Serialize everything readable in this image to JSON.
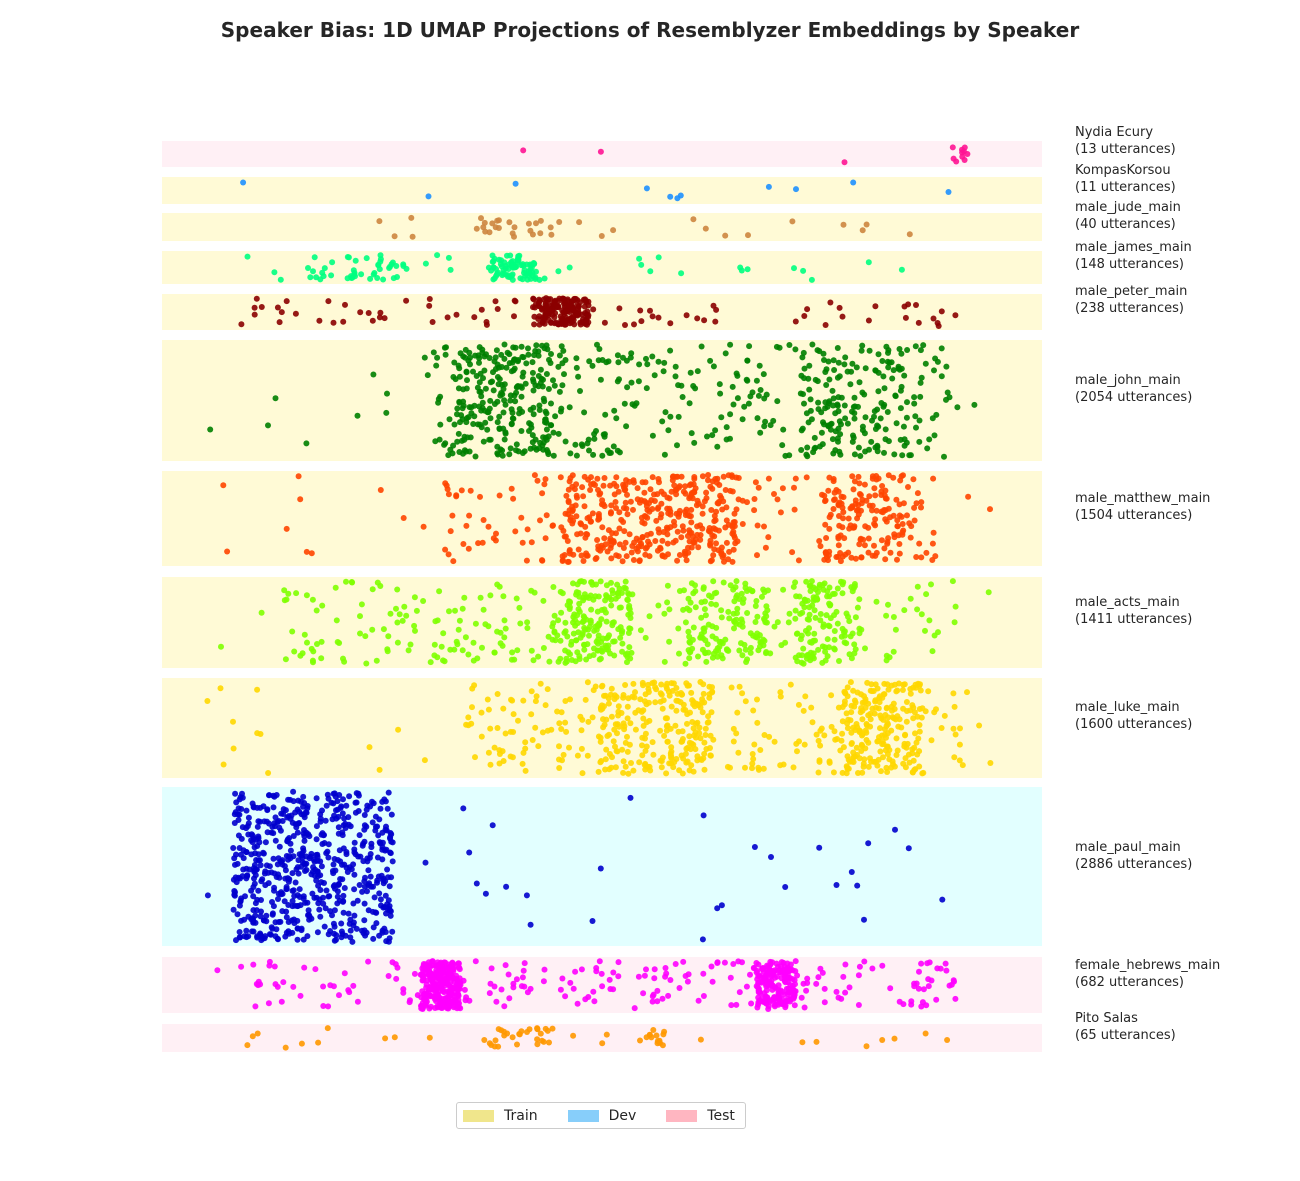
{
  "chart_data": {
    "type": "scatter",
    "title": "Speaker Bias: 1D UMAP Projections of Resemblyzer Embeddings by Speaker",
    "xlabel": "",
    "ylabel": "",
    "xlim": [
      0,
      1
    ],
    "grid": false,
    "legend_placement": "bottom-center",
    "legend": [
      {
        "label": "Train",
        "color": "#f0e68c"
      },
      {
        "label": "Dev",
        "color": "#87cefa"
      },
      {
        "label": "Test",
        "color": "#ffb6c1"
      }
    ],
    "split_background_colors": {
      "train": "#fffad6",
      "dev": "#e2ffff",
      "test": "#fff0f5"
    },
    "series": [
      {
        "speaker": "Nydia Ecury",
        "count_label": "(13 utterances)",
        "n": 13,
        "split": "test",
        "color": "#ff1493",
        "clusters": [
          {
            "c": 0.95,
            "w": 0.01,
            "f": 0.8
          }
        ],
        "bg_range": [
          0.05,
          0.95
        ]
      },
      {
        "speaker": "KompasKorsou",
        "count_label": "(11 utterances)",
        "n": 11,
        "split": "train",
        "color": "#1e90ff",
        "clusters": [
          {
            "c": 0.5,
            "w": 0.45,
            "f": 1.0
          }
        ],
        "bg_range": [
          0.05,
          0.95
        ]
      },
      {
        "speaker": "male_jude_main",
        "count_label": "(40 utterances)",
        "n": 40,
        "split": "train",
        "color": "#cd853f",
        "clusters": [
          {
            "c": 0.4,
            "w": 0.05,
            "f": 0.55
          }
        ],
        "bg_range": [
          0.05,
          0.95
        ]
      },
      {
        "speaker": "male_james_main",
        "count_label": "(148 utterances)",
        "n": 148,
        "split": "train",
        "color": "#00ff7f",
        "clusters": [
          {
            "c": 0.39,
            "w": 0.03,
            "f": 0.45
          },
          {
            "c": 0.2,
            "w": 0.06,
            "f": 0.25
          }
        ],
        "bg_range": [
          0.05,
          0.95
        ]
      },
      {
        "speaker": "male_peter_main",
        "count_label": "(238 utterances)",
        "n": 238,
        "split": "train",
        "color": "#8b0000",
        "clusters": [
          {
            "c": 0.45,
            "w": 0.035,
            "f": 0.7
          }
        ],
        "bg_range": [
          0.05,
          0.95
        ]
      },
      {
        "speaker": "male_john_main",
        "count_label": "(2054 utterances)",
        "n": 2054,
        "split": "train",
        "color": "#008000",
        "clusters": [
          {
            "c": 0.38,
            "w": 0.06,
            "f": 0.25
          },
          {
            "c": 0.82,
            "w": 0.07,
            "f": 0.15
          }
        ],
        "bg_range": [
          0.28,
          0.94
        ]
      },
      {
        "speaker": "male_matthew_main",
        "count_label": "(1504 utterances)",
        "n": 1504,
        "split": "train",
        "color": "#ff4500",
        "clusters": [
          {
            "c": 0.56,
            "w": 0.11,
            "f": 0.5
          },
          {
            "c": 0.83,
            "w": 0.05,
            "f": 0.2
          }
        ],
        "bg_range": [
          0.3,
          0.92
        ]
      },
      {
        "speaker": "male_acts_main",
        "count_label": "(1411 utterances)",
        "n": 1411,
        "split": "train",
        "color": "#7fff00",
        "clusters": [
          {
            "c": 0.49,
            "w": 0.05,
            "f": 0.22
          },
          {
            "c": 0.66,
            "w": 0.05,
            "f": 0.18
          },
          {
            "c": 0.78,
            "w": 0.04,
            "f": 0.15
          }
        ],
        "bg_range": [
          0.1,
          0.95
        ]
      },
      {
        "speaker": "male_luke_main",
        "count_label": "(1600 utterances)",
        "n": 1600,
        "split": "train",
        "color": "#ffd700",
        "clusters": [
          {
            "c": 0.57,
            "w": 0.07,
            "f": 0.3
          },
          {
            "c": 0.85,
            "w": 0.05,
            "f": 0.25
          }
        ],
        "bg_range": [
          0.33,
          0.95
        ]
      },
      {
        "speaker": "male_paul_main",
        "count_label": "(2886 utterances)",
        "n": 2886,
        "split": "dev",
        "color": "#0000cd",
        "clusters": [
          {
            "c": 0.14,
            "w": 0.1,
            "f": 0.93
          }
        ],
        "bg_range": [
          0.26,
          0.95
        ]
      },
      {
        "speaker": "female_hebrews_main",
        "count_label": "(682 utterances)",
        "n": 682,
        "split": "test",
        "color": "#ff00ff",
        "clusters": [
          {
            "c": 0.3,
            "w": 0.025,
            "f": 0.35
          },
          {
            "c": 0.72,
            "w": 0.025,
            "f": 0.3
          }
        ],
        "bg_range": [
          0.05,
          0.95
        ]
      },
      {
        "speaker": "Pito Salas",
        "count_label": "(65 utterances)",
        "n": 65,
        "split": "test",
        "color": "#ff9800",
        "clusters": [
          {
            "c": 0.4,
            "w": 0.04,
            "f": 0.45
          },
          {
            "c": 0.57,
            "w": 0.01,
            "f": 0.1
          }
        ],
        "bg_range": [
          0.05,
          0.95
        ]
      }
    ]
  }
}
